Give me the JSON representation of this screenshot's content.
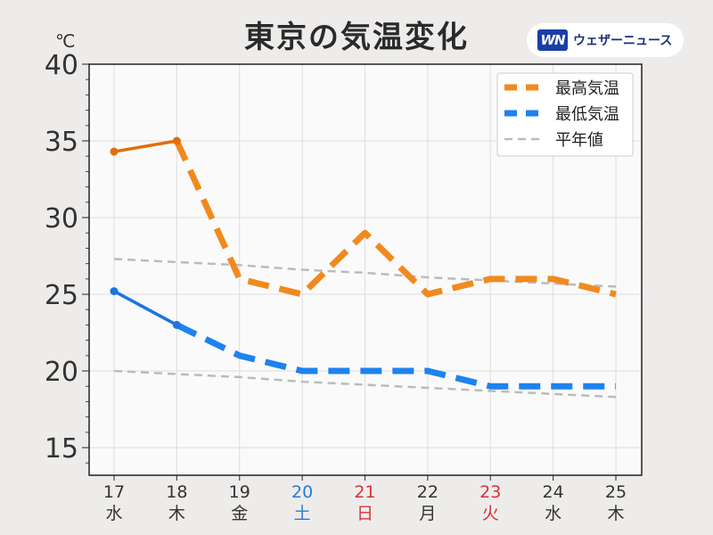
{
  "header": {
    "title": "東京の気温変化",
    "brand_logo": "WN",
    "brand_name": "ウェザーニュース",
    "unit": "℃"
  },
  "chart_data": {
    "type": "line",
    "title": "東京の気温変化",
    "ylim": [
      13.2,
      40
    ],
    "yticks": [
      15,
      20,
      25,
      30,
      35,
      40
    ],
    "grid": true,
    "legend_position": "top-right",
    "categories": [
      {
        "day": "17",
        "weekday": "水",
        "color": "#333333"
      },
      {
        "day": "18",
        "weekday": "木",
        "color": "#333333"
      },
      {
        "day": "19",
        "weekday": "金",
        "color": "#333333"
      },
      {
        "day": "20",
        "weekday": "土",
        "color": "#2a7bd8"
      },
      {
        "day": "21",
        "weekday": "日",
        "color": "#d8313a"
      },
      {
        "day": "22",
        "weekday": "月",
        "color": "#333333"
      },
      {
        "day": "23",
        "weekday": "火",
        "color": "#d8313a"
      },
      {
        "day": "24",
        "weekday": "水",
        "color": "#333333"
      },
      {
        "day": "25",
        "weekday": "木",
        "color": "#333333"
      }
    ],
    "series": [
      {
        "name": "最高気温",
        "color": "#f08a1e",
        "observed_color": "#e06e0c",
        "values": [
          34.3,
          35.0,
          26.0,
          25.0,
          29.0,
          25.0,
          26.0,
          26.0,
          25.0
        ],
        "observed_count": 2
      },
      {
        "name": "最低気温",
        "color": "#1e82f0",
        "observed_color": "#1c74e0",
        "values": [
          25.2,
          23.0,
          21.0,
          20.0,
          20.0,
          20.0,
          19.0,
          19.0,
          19.0
        ],
        "observed_count": 2
      },
      {
        "name": "平年値",
        "color": "#bbbbbb",
        "normal_high": [
          27.3,
          27.1,
          26.9,
          26.6,
          26.4,
          26.1,
          25.9,
          25.7,
          25.5
        ],
        "normal_low": [
          20.0,
          19.8,
          19.6,
          19.3,
          19.1,
          18.9,
          18.7,
          18.5,
          18.3
        ]
      }
    ]
  }
}
